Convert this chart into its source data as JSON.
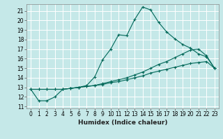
{
  "title": "",
  "xlabel": "Humidex (Indice chaleur)",
  "ylabel": "",
  "bg_color": "#c5e8e8",
  "line_color": "#006858",
  "grid_color": "#ffffff",
  "xlim": [
    -0.5,
    23.5
  ],
  "ylim": [
    10.8,
    21.7
  ],
  "yticks": [
    11,
    12,
    13,
    14,
    15,
    16,
    17,
    18,
    19,
    20,
    21
  ],
  "xticks": [
    0,
    1,
    2,
    3,
    4,
    5,
    6,
    7,
    8,
    9,
    10,
    11,
    12,
    13,
    14,
    15,
    16,
    17,
    18,
    19,
    20,
    21,
    22,
    23
  ],
  "line1_x": [
    0,
    1,
    2,
    3,
    4,
    5,
    6,
    7,
    8,
    9,
    10,
    11,
    12,
    13,
    14,
    15,
    16,
    17,
    18,
    19,
    20,
    21,
    22,
    23
  ],
  "line1_y": [
    12.8,
    11.6,
    11.6,
    12.0,
    12.8,
    12.9,
    13.0,
    13.2,
    14.1,
    15.9,
    17.0,
    18.5,
    18.4,
    20.1,
    21.4,
    21.1,
    19.8,
    18.8,
    18.1,
    17.5,
    17.1,
    16.5,
    16.2,
    15.0
  ],
  "line2_x": [
    0,
    1,
    2,
    3,
    4,
    5,
    6,
    7,
    8,
    9,
    10,
    11,
    12,
    13,
    14,
    15,
    16,
    17,
    18,
    19,
    20,
    21,
    22,
    23
  ],
  "line2_y": [
    12.8,
    12.8,
    12.8,
    12.8,
    12.8,
    12.9,
    13.0,
    13.1,
    13.2,
    13.4,
    13.6,
    13.8,
    14.0,
    14.3,
    14.6,
    15.0,
    15.4,
    15.7,
    16.1,
    16.5,
    16.9,
    17.0,
    16.3,
    15.0
  ],
  "line3_x": [
    0,
    1,
    2,
    3,
    4,
    5,
    6,
    7,
    8,
    9,
    10,
    11,
    12,
    13,
    14,
    15,
    16,
    17,
    18,
    19,
    20,
    21,
    22,
    23
  ],
  "line3_y": [
    12.8,
    12.8,
    12.8,
    12.8,
    12.8,
    12.9,
    13.0,
    13.1,
    13.2,
    13.3,
    13.5,
    13.6,
    13.8,
    14.0,
    14.2,
    14.5,
    14.7,
    14.9,
    15.1,
    15.3,
    15.5,
    15.6,
    15.7,
    15.0
  ]
}
